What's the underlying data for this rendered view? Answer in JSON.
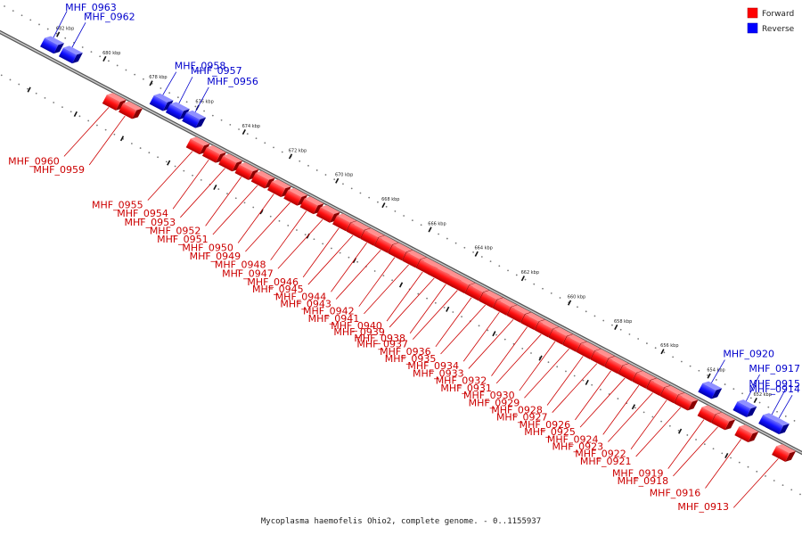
{
  "caption": "Mycoplasma haemofelis Ohio2, complete genome. - 0..1155937",
  "legend": {
    "placement": "top-right",
    "items": [
      {
        "label": "Forward",
        "color": "#ff0000"
      },
      {
        "label": "Reverse",
        "color": "#0000ff"
      }
    ]
  },
  "colors": {
    "forward": "#ff0000",
    "reverse": "#0000ff",
    "forward_label": "#cc0000",
    "reverse_label": "#0000cc",
    "backbone": "#888888"
  },
  "ticks": [
    {
      "kbp": 682,
      "label": "682 kbp"
    },
    {
      "kbp": 680,
      "label": "680 kbp"
    },
    {
      "kbp": 678,
      "label": "678 kbp"
    },
    {
      "kbp": 676,
      "label": "676 kbp"
    },
    {
      "kbp": 674,
      "label": "674 kbp"
    },
    {
      "kbp": 672,
      "label": "672 kbp"
    },
    {
      "kbp": 670,
      "label": "670 kbp"
    },
    {
      "kbp": 668,
      "label": "668 kbp"
    },
    {
      "kbp": 666,
      "label": "666 kbp"
    },
    {
      "kbp": 664,
      "label": "664 kbp"
    },
    {
      "kbp": 662,
      "label": "662 kbp"
    },
    {
      "kbp": 660,
      "label": "660 kbp"
    },
    {
      "kbp": 658,
      "label": "658 kbp"
    },
    {
      "kbp": 656,
      "label": "656 kbp"
    },
    {
      "kbp": 654,
      "label": "654 kbp"
    },
    {
      "kbp": 652,
      "label": "652 kbp"
    }
  ],
  "genes": [
    {
      "name": "MHF_0963",
      "strand": "reverse",
      "pos": 682.1
    },
    {
      "name": "MHF_0962",
      "strand": "reverse",
      "pos": 681.3
    },
    {
      "name": "MHF_0958",
      "strand": "reverse",
      "pos": 677.4
    },
    {
      "name": "MHF_0957",
      "strand": "reverse",
      "pos": 676.7
    },
    {
      "name": "MHF_0956",
      "strand": "reverse",
      "pos": 676.0
    },
    {
      "name": "MHF_0960",
      "strand": "forward",
      "pos": 679.0
    },
    {
      "name": "MHF_0959",
      "strand": "forward",
      "pos": 678.3
    },
    {
      "name": "MHF_0955",
      "strand": "forward",
      "pos": 675.4
    },
    {
      "name": "MHF_0954",
      "strand": "forward",
      "pos": 674.7
    },
    {
      "name": "MHF_0953",
      "strand": "forward",
      "pos": 674.0
    },
    {
      "name": "MHF_0952",
      "strand": "forward",
      "pos": 673.3
    },
    {
      "name": "MHF_0951",
      "strand": "forward",
      "pos": 672.6
    },
    {
      "name": "MHF_0950",
      "strand": "forward",
      "pos": 671.9
    },
    {
      "name": "MHF_0949",
      "strand": "forward",
      "pos": 671.2
    },
    {
      "name": "MHF_0948",
      "strand": "forward",
      "pos": 670.5
    },
    {
      "name": "MHF_0947",
      "strand": "forward",
      "pos": 669.8
    },
    {
      "name": "MHF_0946",
      "strand": "forward",
      "pos": 669.1
    },
    {
      "name": "MHF_0945",
      "strand": "forward",
      "pos": 668.5
    },
    {
      "name": "MHF_0944",
      "strand": "forward",
      "pos": 667.9
    },
    {
      "name": "MHF_0943",
      "strand": "forward",
      "pos": 667.3
    },
    {
      "name": "MHF_0942",
      "strand": "forward",
      "pos": 666.7
    },
    {
      "name": "MHF_0941",
      "strand": "forward",
      "pos": 666.1
    },
    {
      "name": "MHF_0940",
      "strand": "forward",
      "pos": 665.5
    },
    {
      "name": "MHF_0939",
      "strand": "forward",
      "pos": 665.0
    },
    {
      "name": "MHF_0938",
      "strand": "forward",
      "pos": 664.5
    },
    {
      "name": "MHF_0937",
      "strand": "forward",
      "pos": 664.0
    },
    {
      "name": "MHF_0936",
      "strand": "forward",
      "pos": 663.4
    },
    {
      "name": "MHF_0935",
      "strand": "forward",
      "pos": 662.8
    },
    {
      "name": "MHF_0934",
      "strand": "forward",
      "pos": 662.2
    },
    {
      "name": "MHF_0933",
      "strand": "forward",
      "pos": 661.6
    },
    {
      "name": "MHF_0932",
      "strand": "forward",
      "pos": 661.0
    },
    {
      "name": "MHF_0931",
      "strand": "forward",
      "pos": 660.4
    },
    {
      "name": "MHF_0930",
      "strand": "forward",
      "pos": 659.8
    },
    {
      "name": "MHF_0929",
      "strand": "forward",
      "pos": 659.2
    },
    {
      "name": "MHF_0928",
      "strand": "forward",
      "pos": 658.6
    },
    {
      "name": "MHF_0927",
      "strand": "forward",
      "pos": 658.0
    },
    {
      "name": "MHF_0926",
      "strand": "forward",
      "pos": 657.4
    },
    {
      "name": "MHF_0925",
      "strand": "forward",
      "pos": 656.8
    },
    {
      "name": "MHF_0924",
      "strand": "forward",
      "pos": 656.2
    },
    {
      "name": "MHF_0923",
      "strand": "forward",
      "pos": 655.6
    },
    {
      "name": "MHF_0922",
      "strand": "forward",
      "pos": 655.0
    },
    {
      "name": "MHF_0921",
      "strand": "forward",
      "pos": 654.4
    },
    {
      "name": "MHF_0920",
      "strand": "reverse",
      "pos": 653.8
    },
    {
      "name": "MHF_0919",
      "strand": "forward",
      "pos": 653.4
    },
    {
      "name": "MHF_0918",
      "strand": "forward",
      "pos": 652.8
    },
    {
      "name": "MHF_0917",
      "strand": "reverse",
      "pos": 652.3
    },
    {
      "name": "MHF_0916",
      "strand": "forward",
      "pos": 651.8
    },
    {
      "name": "MHF_0915",
      "strand": "reverse",
      "pos": 651.2
    },
    {
      "name": "MHF_0914",
      "strand": "reverse",
      "pos": 650.9
    },
    {
      "name": "MHF_0913",
      "strand": "forward",
      "pos": 650.2
    }
  ]
}
